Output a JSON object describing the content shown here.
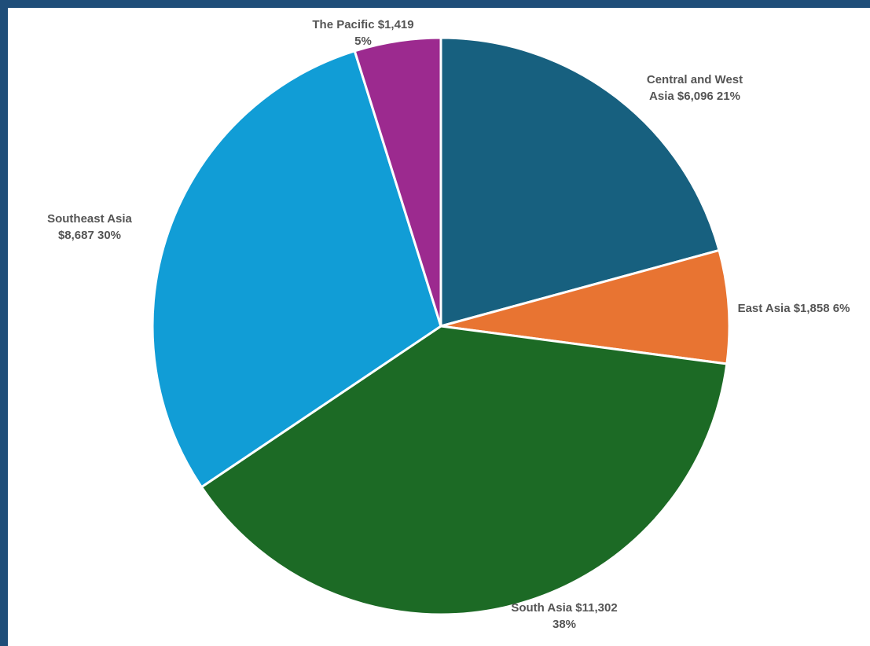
{
  "chart_data": {
    "type": "pie",
    "title": "",
    "start_angle_deg": 0,
    "direction": "clockwise",
    "slices": [
      {
        "name": "Central and West Asia",
        "value": 6096,
        "value_label": "$6,096",
        "percent_label": "21%",
        "color": "#17607f",
        "label_lines": [
          "Central and West",
          "Asia  $6,096   21%"
        ]
      },
      {
        "name": "East Asia",
        "value": 1858,
        "value_label": "$1,858",
        "percent_label": "6%",
        "color": "#e87432",
        "label_lines": [
          "East Asia  $1,858   6%"
        ]
      },
      {
        "name": "South Asia",
        "value": 11302,
        "value_label": "$11,302",
        "percent_label": "38%",
        "color": "#1c6a25",
        "label_lines": [
          "South Asia  $11,302",
          "38%"
        ]
      },
      {
        "name": "Southeast Asia",
        "value": 8687,
        "value_label": "$8,687",
        "percent_label": "30%",
        "color": "#119dd6",
        "label_lines": [
          "Southeast Asia",
          "$8,687   30%"
        ]
      },
      {
        "name": "The Pacific",
        "value": 1419,
        "value_label": "$1,419",
        "percent_label": "5%",
        "color": "#9c2a8f",
        "label_lines": [
          "The Pacific   $1,419",
          "5%"
        ]
      }
    ],
    "legend": "none"
  }
}
